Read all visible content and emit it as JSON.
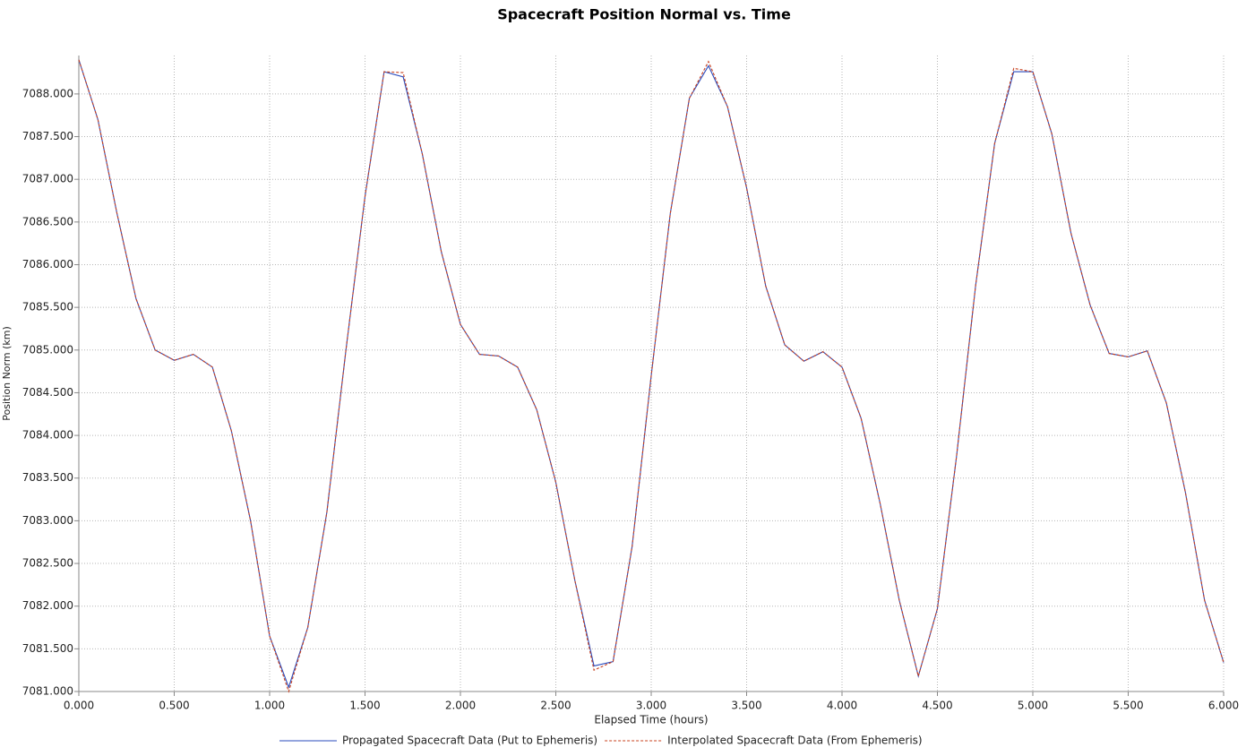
{
  "chart_data": {
    "type": "line",
    "title": "Spacecraft Position Normal vs. Time",
    "x_label": "Elapsed Time (hours)",
    "y_label": "Position Norm (km)",
    "x": [
      0,
      0.1,
      0.2,
      0.3,
      0.4,
      0.5,
      0.6,
      0.7,
      0.8,
      0.9,
      1.0,
      1.1,
      1.2,
      1.3,
      1.4,
      1.5,
      1.6,
      1.7,
      1.8,
      1.9,
      2.0,
      2.1,
      2.2,
      2.3,
      2.4,
      2.5,
      2.6,
      2.7,
      2.8,
      2.9,
      3.0,
      3.1,
      3.2,
      3.3,
      3.4,
      3.5,
      3.6,
      3.7,
      3.8,
      3.9,
      4.0,
      4.1,
      4.2,
      4.3,
      4.4,
      4.5,
      4.6,
      4.7,
      4.8,
      4.9,
      5.0,
      5.1,
      5.2,
      5.3,
      5.4,
      5.5,
      5.6,
      5.7,
      5.8,
      5.9,
      6.0
    ],
    "series": [
      {
        "name": "Propagated Spacecraft Data (Put to Ephemeris)",
        "color": "#2a4bbd",
        "style": "solid",
        "values": [
          7088.4,
          7087.7,
          7086.6,
          7085.6,
          7085.0,
          7084.88,
          7084.95,
          7084.8,
          7084.05,
          7083.0,
          7081.65,
          7081.05,
          7081.75,
          7083.1,
          7085.0,
          7086.8,
          7088.26,
          7088.2,
          7087.3,
          7086.15,
          7085.3,
          7084.95,
          7084.93,
          7084.8,
          7084.3,
          7083.45,
          7082.3,
          7081.3,
          7081.35,
          7082.7,
          7084.7,
          7086.6,
          7087.95,
          7088.33,
          7087.85,
          7086.9,
          7085.75,
          7085.06,
          7084.87,
          7084.98,
          7084.8,
          7084.2,
          7083.2,
          7082.07,
          7081.18,
          7081.97,
          7083.75,
          7085.75,
          7087.42,
          7088.26,
          7088.26,
          7087.53,
          7086.37,
          7085.53,
          7084.96,
          7084.92,
          7084.99,
          7084.38,
          7083.33,
          7082.07,
          7081.34
        ]
      },
      {
        "name": "Interpolated Spacecraft Data (From Ephemeris)",
        "color": "#c8401e",
        "style": "dashed",
        "values": [
          7088.4,
          7087.7,
          7086.6,
          7085.6,
          7085.0,
          7084.88,
          7084.95,
          7084.8,
          7084.05,
          7083.0,
          7081.65,
          7081.0,
          7081.75,
          7083.1,
          7085.0,
          7086.8,
          7088.26,
          7088.25,
          7087.3,
          7086.15,
          7085.3,
          7084.95,
          7084.93,
          7084.8,
          7084.3,
          7083.45,
          7082.3,
          7081.25,
          7081.35,
          7082.7,
          7084.7,
          7086.6,
          7087.95,
          7088.38,
          7087.85,
          7086.9,
          7085.75,
          7085.06,
          7084.87,
          7084.98,
          7084.8,
          7084.2,
          7083.2,
          7082.07,
          7081.18,
          7081.97,
          7083.75,
          7085.75,
          7087.42,
          7088.3,
          7088.26,
          7087.53,
          7086.37,
          7085.53,
          7084.96,
          7084.92,
          7084.99,
          7084.38,
          7083.33,
          7082.07,
          7081.34
        ]
      }
    ],
    "xlim": [
      0,
      6
    ],
    "ylim": [
      7081,
      7088.45
    ],
    "xticks": [
      {
        "value": 0,
        "label": "0.000"
      },
      {
        "value": 0.5,
        "label": "0.500"
      },
      {
        "value": 1,
        "label": "1.000"
      },
      {
        "value": 1.5,
        "label": "1.500"
      },
      {
        "value": 2,
        "label": "2.000"
      },
      {
        "value": 2.5,
        "label": "2.500"
      },
      {
        "value": 3,
        "label": "3.000"
      },
      {
        "value": 3.5,
        "label": "3.500"
      },
      {
        "value": 4,
        "label": "4.000"
      },
      {
        "value": 4.5,
        "label": "4.500"
      },
      {
        "value": 5,
        "label": "5.000"
      },
      {
        "value": 5.5,
        "label": "5.500"
      },
      {
        "value": 6,
        "label": "6.000"
      }
    ],
    "yticks": [
      {
        "value": 7081,
        "label": "7081.000"
      },
      {
        "value": 7081.5,
        "label": "7081.500"
      },
      {
        "value": 7082,
        "label": "7082.000"
      },
      {
        "value": 7082.5,
        "label": "7082.500"
      },
      {
        "value": 7083,
        "label": "7083.000"
      },
      {
        "value": 7083.5,
        "label": "7083.500"
      },
      {
        "value": 7084,
        "label": "7084.000"
      },
      {
        "value": 7084.5,
        "label": "7084.500"
      },
      {
        "value": 7085,
        "label": "7085.000"
      },
      {
        "value": 7085.5,
        "label": "7085.500"
      },
      {
        "value": 7086,
        "label": "7086.000"
      },
      {
        "value": 7086.5,
        "label": "7086.500"
      },
      {
        "value": 7087,
        "label": "7087.000"
      },
      {
        "value": 7087.5,
        "label": "7087.500"
      },
      {
        "value": 7088,
        "label": "7088.000"
      }
    ],
    "grid": true,
    "legend": "bottom"
  }
}
